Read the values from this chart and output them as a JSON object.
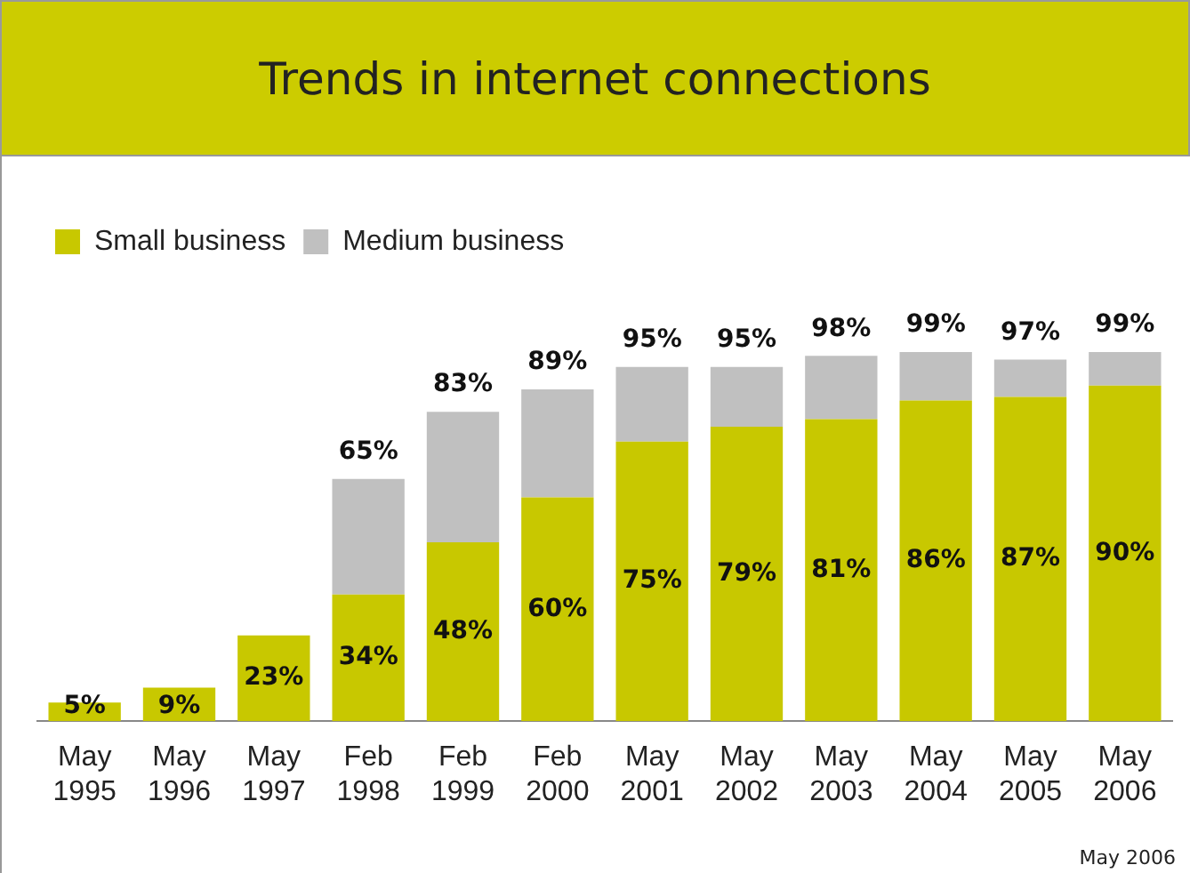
{
  "chart_data": {
    "type": "bar",
    "title": "Trends in internet connections",
    "stacked": true,
    "legend": "top left",
    "grid": false,
    "tick_labels": "x",
    "categories": [
      "May 1995",
      "May 1996",
      "May 1997",
      "Feb 1998",
      "Feb 1999",
      "Feb 2000",
      "May 2001",
      "May 2002",
      "May 2003",
      "May 2004",
      "May 2005",
      "May 2006"
    ],
    "series": [
      {
        "name": "Small business",
        "color": "#c8c800",
        "values": [
          5,
          9,
          23,
          34,
          48,
          60,
          75,
          79,
          81,
          86,
          87,
          90
        ],
        "value_labels": [
          "5%",
          "9%",
          "23%",
          "34%",
          "48%",
          "60%",
          "75%",
          "79%",
          "81%",
          "86%",
          "87%",
          "90%"
        ]
      },
      {
        "name": "Medium business",
        "color": "#c0c0c0",
        "values": [
          null,
          null,
          null,
          31,
          35,
          29,
          20,
          16,
          17,
          13,
          10,
          9
        ]
      }
    ],
    "totals": [
      null,
      null,
      null,
      "65%",
      "83%",
      "89%",
      "95%",
      "95%",
      "98%",
      "99%",
      "97%",
      "99%"
    ],
    "annotations": [
      "May 2006"
    ]
  }
}
